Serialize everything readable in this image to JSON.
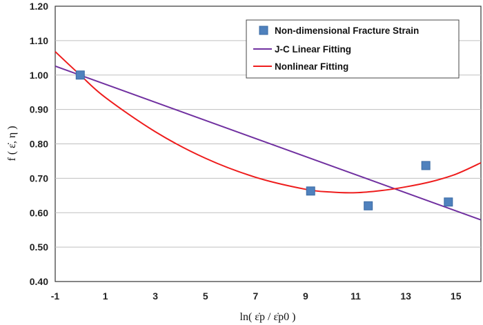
{
  "chart_data": {
    "type": "scatter",
    "xlabel": "ln( ε̇p / ε̇p0 )",
    "ylabel": "f ( ε̇, η )",
    "xlim": [
      -1,
      16
    ],
    "ylim": [
      0.4,
      1.2
    ],
    "x_ticks": [
      "-1",
      "1",
      "3",
      "5",
      "7",
      "9",
      "11",
      "13",
      "15"
    ],
    "x_tick_values": [
      -1,
      1,
      3,
      5,
      7,
      9,
      11,
      13,
      15
    ],
    "y_ticks": [
      "0.40",
      "0.50",
      "0.60",
      "0.70",
      "0.80",
      "0.90",
      "1.00",
      "1.10",
      "1.20"
    ],
    "y_tick_values": [
      0.4,
      0.5,
      0.6,
      0.7,
      0.8,
      0.9,
      1.0,
      1.1,
      1.2
    ],
    "grid": "horizontal",
    "legend_position": "top-right",
    "series": [
      {
        "name": "Non-dimensional Fracture Strain",
        "kind": "scatter",
        "color": "#4f81bd",
        "x": [
          0,
          9.2,
          11.5,
          13.8,
          14.7
        ],
        "y": [
          1.0,
          0.663,
          0.62,
          0.737,
          0.631
        ]
      },
      {
        "name": "J-C Linear Fitting",
        "kind": "line",
        "color": "#7030a0",
        "x": [
          -1,
          16
        ],
        "y": [
          1.026,
          0.579
        ]
      },
      {
        "name": "Nonlinear Fitting",
        "kind": "line",
        "color": "#ee1c1c",
        "x": [
          -1,
          0,
          1,
          3,
          5,
          7,
          9,
          10,
          11,
          12,
          13,
          14,
          15,
          16
        ],
        "y": [
          1.068,
          1.0,
          0.935,
          0.835,
          0.758,
          0.703,
          0.668,
          0.66,
          0.658,
          0.664,
          0.675,
          0.69,
          0.712,
          0.745
        ]
      }
    ]
  }
}
